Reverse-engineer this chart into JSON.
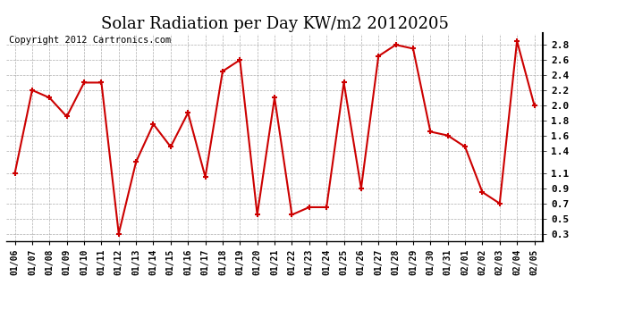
{
  "title": "Solar Radiation per Day KW/m2 20120205",
  "copyright_text": "Copyright 2012 Cartronics.com",
  "dates": [
    "01/06",
    "01/07",
    "01/08",
    "01/09",
    "01/10",
    "01/11",
    "01/12",
    "01/13",
    "01/14",
    "01/15",
    "01/16",
    "01/17",
    "01/18",
    "01/19",
    "01/20",
    "01/21",
    "01/22",
    "01/23",
    "01/24",
    "01/25",
    "01/26",
    "01/27",
    "01/28",
    "01/29",
    "01/30",
    "01/31",
    "02/01",
    "02/02",
    "02/03",
    "02/04",
    "02/05"
  ],
  "values": [
    1.1,
    2.2,
    2.1,
    1.85,
    2.3,
    2.3,
    0.3,
    1.25,
    1.75,
    1.45,
    1.9,
    1.05,
    2.45,
    2.6,
    0.55,
    2.1,
    0.55,
    0.65,
    0.65,
    2.3,
    0.9,
    2.65,
    2.8,
    2.75,
    1.65,
    1.6,
    1.45,
    0.85,
    0.7,
    2.85,
    2.0
  ],
  "line_color": "#cc0000",
  "marker_color": "#cc0000",
  "bg_color": "#ffffff",
  "plot_bg_color": "#ffffff",
  "grid_color": "#999999",
  "ylim": [
    0.2,
    2.95
  ],
  "yticks": [
    0.3,
    0.5,
    0.7,
    0.9,
    1.1,
    1.4,
    1.6,
    1.8,
    2.0,
    2.2,
    2.4,
    2.6,
    2.8
  ],
  "title_fontsize": 13,
  "copyright_fontsize": 7.5
}
